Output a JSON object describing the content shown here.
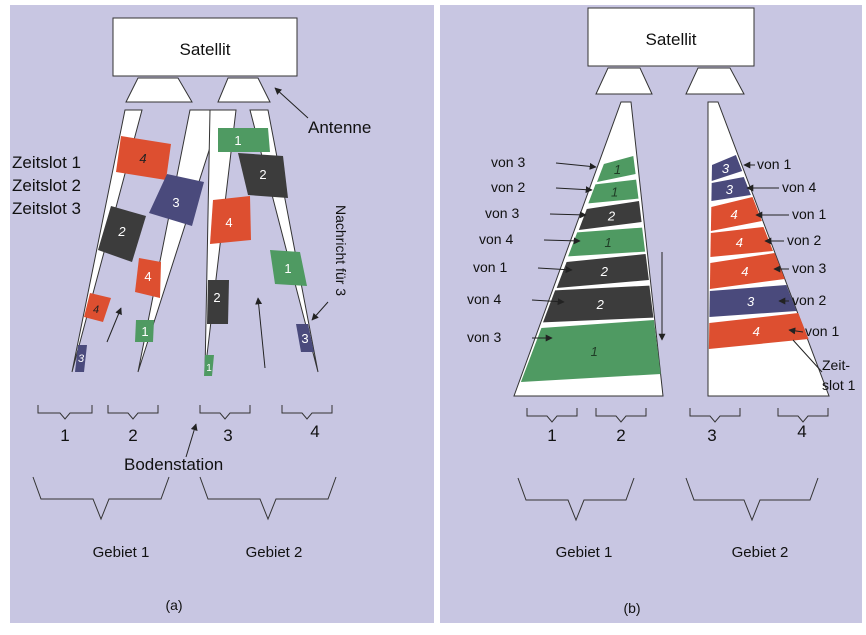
{
  "colors": {
    "background": "#c8c6e2",
    "green": "#4f9a62",
    "red": "#dd4f30",
    "dark": "#3c3c3c",
    "navy": "#4a4a7c",
    "white": "#ffffff"
  },
  "a": {
    "satellite": "Satellit",
    "antenna_label": "Antenne",
    "timeslots": [
      "Zeitslot 1",
      "Zeitslot 2",
      "Zeitslot 3"
    ],
    "message_label": "Nachricht für 3",
    "ground_station_label": "Bodenstation",
    "stations": [
      "1",
      "2",
      "3",
      "4"
    ],
    "areas": [
      "Gebiet 1",
      "Gebiet 2"
    ],
    "caption": "(a)",
    "slot_numbers": {
      "b1_red": "4",
      "b1_dark": "2",
      "b1_red_small": "4",
      "b1_navy_small": "3",
      "b2_navy": "3",
      "b2_red": "4",
      "b2_green": "1",
      "b3_green_top": "1",
      "b3_red": "4",
      "b3_dark": "2",
      "b3_green_small": "1",
      "b4_dark": "2",
      "b4_green": "1",
      "b4_navy": "3"
    }
  },
  "b": {
    "satellite": "Satellit",
    "left_labels": [
      "von 3",
      "von 2",
      "von 3",
      "von 4",
      "von 1",
      "von 4",
      "von 3"
    ],
    "left_slots": [
      "1",
      "1",
      "2",
      "1",
      "2",
      "2",
      "1"
    ],
    "right_labels": [
      "von 1",
      "von 4",
      "von 1",
      "von 2",
      "von 3",
      "von 2",
      "von 1"
    ],
    "right_slots": [
      "3",
      "3",
      "4",
      "4",
      "4",
      "3",
      "4"
    ],
    "zeitslot_label": [
      "Zeit-",
      "slot 1"
    ],
    "stations": [
      "1",
      "2",
      "3",
      "4"
    ],
    "areas": [
      "Gebiet 1",
      "Gebiet 2"
    ],
    "caption": "(b)"
  }
}
